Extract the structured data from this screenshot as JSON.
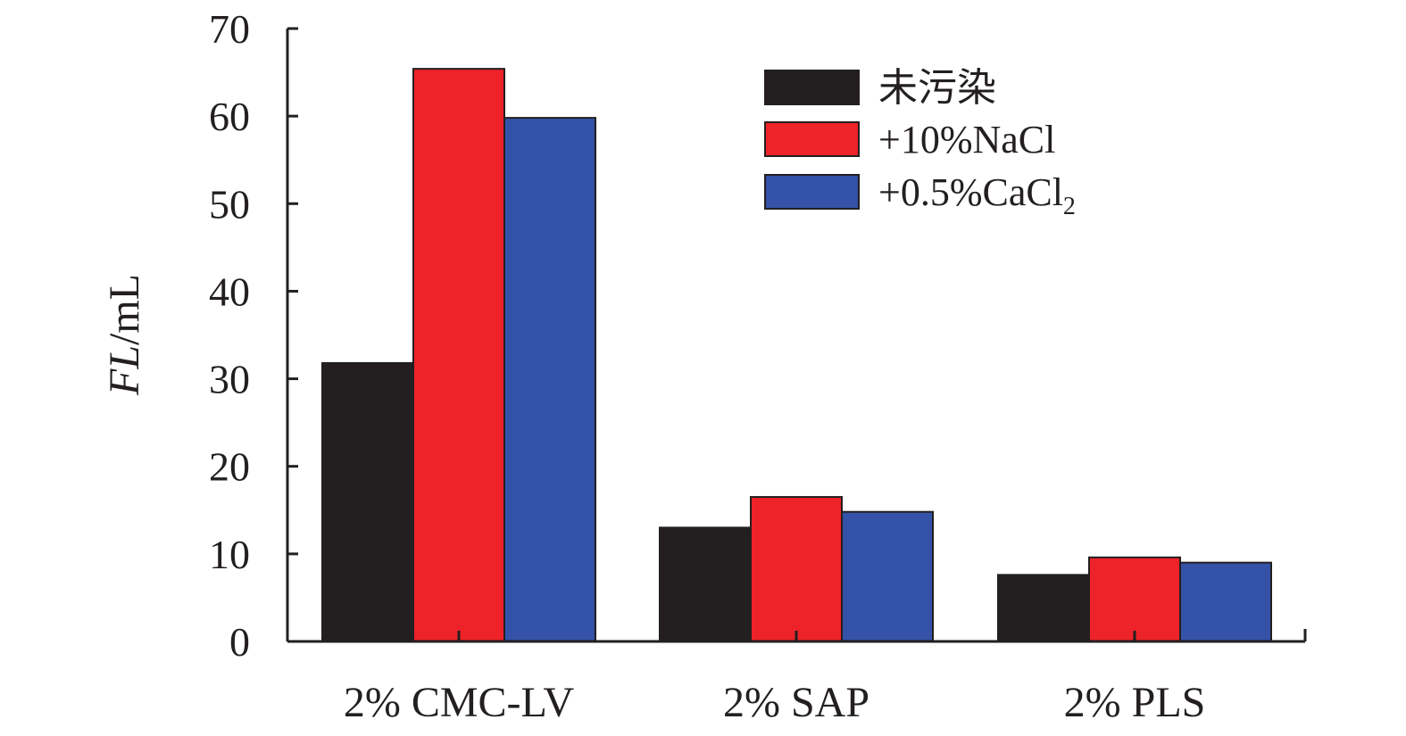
{
  "chart_data": {
    "type": "bar",
    "categories": [
      "2% CMC-LV",
      "2% SAP",
      "2% PLS"
    ],
    "series": [
      {
        "name": "未污染",
        "values": [
          31.8,
          13.0,
          7.6
        ],
        "color": "#231f20"
      },
      {
        "name": "+10%NaCl",
        "values": [
          65.4,
          16.5,
          9.6
        ],
        "color": "#ee2229"
      },
      {
        "name": "+0.5%CaCl2",
        "name_main": "+0.5%CaCl",
        "name_sub": "2",
        "values": [
          59.8,
          14.8,
          9.0
        ],
        "color": "#3452a7"
      }
    ],
    "ylabel_italic": "FL",
    "ylabel_unit": "/mL",
    "ylim": [
      0,
      70
    ],
    "yticks": [
      "0",
      "10",
      "20",
      "30",
      "40",
      "50",
      "60",
      "70"
    ],
    "grid": false,
    "legend_position": "top-right"
  }
}
